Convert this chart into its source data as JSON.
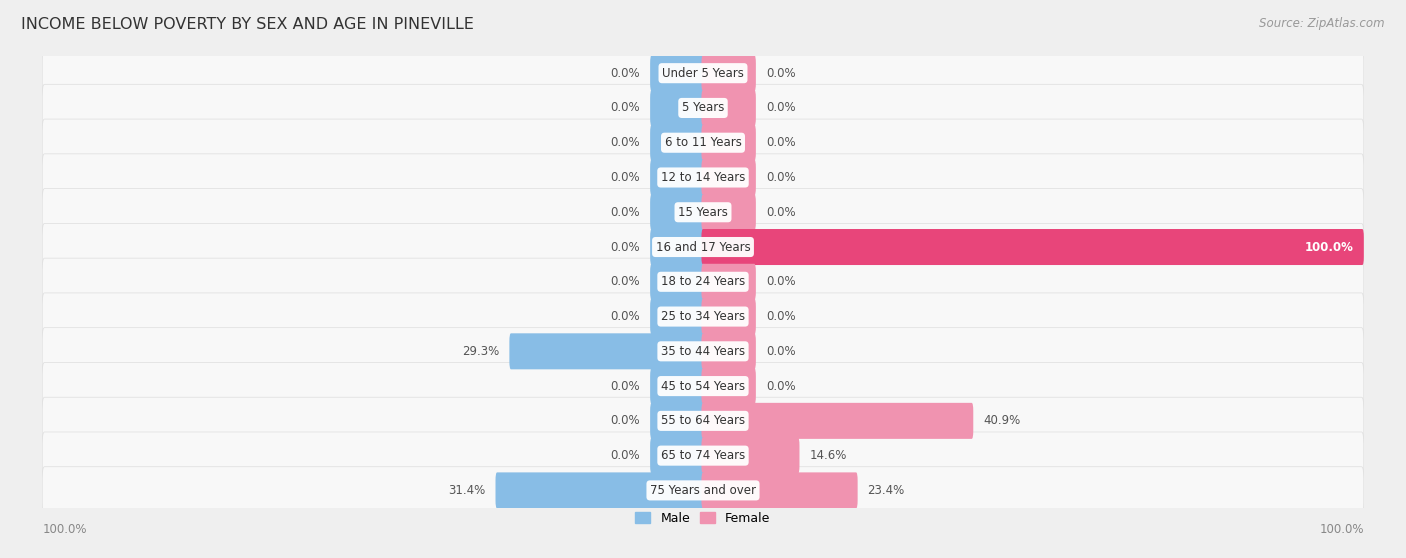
{
  "title": "INCOME BELOW POVERTY BY SEX AND AGE IN PINEVILLE",
  "source": "Source: ZipAtlas.com",
  "categories": [
    "Under 5 Years",
    "5 Years",
    "6 to 11 Years",
    "12 to 14 Years",
    "15 Years",
    "16 and 17 Years",
    "18 to 24 Years",
    "25 to 34 Years",
    "35 to 44 Years",
    "45 to 54 Years",
    "55 to 64 Years",
    "65 to 74 Years",
    "75 Years and over"
  ],
  "male": [
    0.0,
    0.0,
    0.0,
    0.0,
    0.0,
    0.0,
    0.0,
    0.0,
    29.3,
    0.0,
    0.0,
    0.0,
    31.4
  ],
  "female": [
    0.0,
    0.0,
    0.0,
    0.0,
    0.0,
    100.0,
    0.0,
    0.0,
    0.0,
    0.0,
    40.9,
    14.6,
    23.4
  ],
  "male_color": "#88bde6",
  "female_color": "#f093b0",
  "female_color_bright": "#e8457a",
  "bg_color": "#efefef",
  "row_bg_color": "#f8f8f8",
  "row_border_color": "#dddddd",
  "max_val": 100.0,
  "stub_val": 8.0,
  "title_fontsize": 11.5,
  "source_fontsize": 8.5,
  "label_fontsize": 8.5,
  "cat_fontsize": 8.5,
  "legend_fontsize": 9,
  "axis_label_fontsize": 8.5
}
